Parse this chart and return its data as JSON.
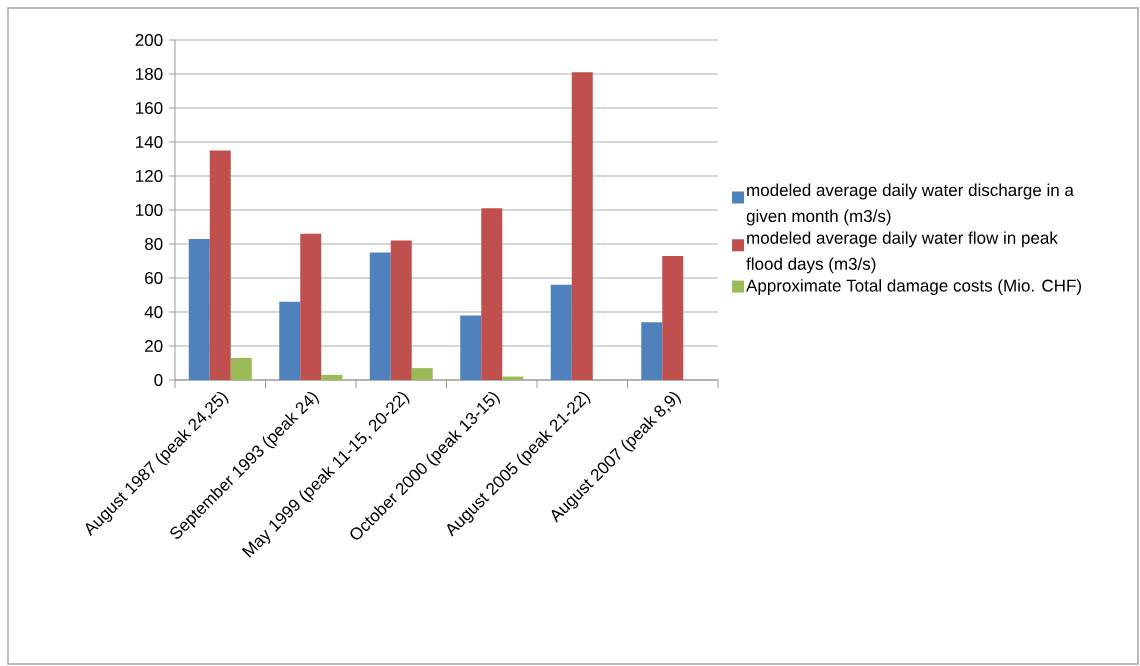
{
  "chart_data": {
    "type": "bar",
    "categories": [
      "August 1987 (peak 24,25)",
      "September 1993 (peak 24)",
      "May 1999 (peak 11-15, 20-22)",
      "October 2000 (peak 13-15)",
      "August 2005 (peak 21-22)",
      "August 2007 (peak 8,9)"
    ],
    "series": [
      {
        "name": "modeled average daily water discharge in a given month (m3/s)",
        "color": "#4f81bd",
        "values": [
          83,
          46,
          75,
          38,
          56,
          34
        ]
      },
      {
        "name": "modeled average daily water flow in peak flood days  (m3/s)",
        "color": "#c0504d",
        "values": [
          135,
          86,
          82,
          101,
          181,
          73
        ]
      },
      {
        "name": "Approximate Total damage costs (Mio. CHF)",
        "color": "#9bbb59",
        "values": [
          13,
          3,
          7,
          2,
          null,
          null
        ]
      }
    ],
    "ylim": [
      0,
      200
    ],
    "yticks": [
      0,
      20,
      40,
      60,
      80,
      100,
      120,
      140,
      160,
      180,
      200
    ],
    "grid": "y",
    "legend": "right"
  }
}
